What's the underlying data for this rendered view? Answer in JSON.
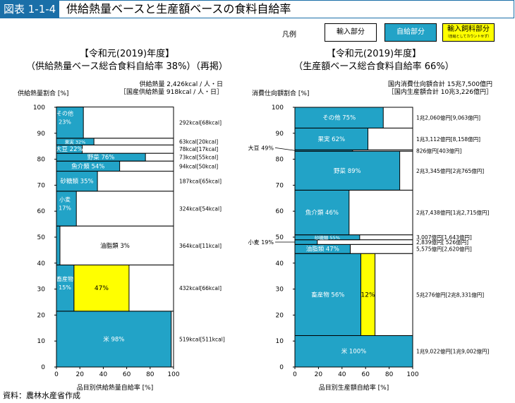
{
  "figure_label": "図表 1-1-4",
  "figure_title": "供給熱量ベースと生産額ベースの食料自給率",
  "legend": {
    "title": "凡例",
    "import": "輸入部分",
    "self": "自給部分",
    "feed": "輸入飼料部分",
    "feed_note": "（自給としてカウントせず）"
  },
  "source": "資料：農林水産省作成",
  "colors": {
    "self": "#22a3c7",
    "import": "#ffffff",
    "feed": "#ffff00",
    "header": "#1a6fa8"
  },
  "chart_data": [
    {
      "type": "bar",
      "variant": "marimekko",
      "title": "【令和元(2019)年度】",
      "subtitle": "（供給熱量ベース総合食料自給率 38%）（再掲）",
      "totals": [
        "供給熱量 2,426kcal / 人・日",
        "［国産供給熱量 918kcal / 人・日］"
      ],
      "ylabel": "供給熱量割合 [%]",
      "xlabel": "品目別供給熱量自給率 [%]",
      "xlim": [
        0,
        100
      ],
      "ylim": [
        0,
        100
      ],
      "xticks": [
        "0",
        "20",
        "40",
        "60",
        "80",
        "100"
      ],
      "yticks": [
        "0",
        "10",
        "20",
        "30",
        "40",
        "50",
        "60",
        "70",
        "80",
        "90",
        "100"
      ],
      "segments": [
        {
          "label": "米",
          "pct_label": "98%",
          "share": 21.5,
          "self_rate": 98,
          "feed_rate": 0,
          "right_label": "519kcal[511kcal]"
        },
        {
          "label": "畜産物",
          "pct_label": "15%",
          "share": 17.8,
          "self_rate": 15,
          "feed_rate": 47,
          "feed_label": "47%",
          "right_label": "432kcal[66kcal]"
        },
        {
          "label": "油脂類",
          "pct_label": "3%",
          "share": 15.0,
          "self_rate": 3,
          "feed_rate": 0,
          "right_label": "364kcal[11kcal]"
        },
        {
          "label": "小麦",
          "pct_label": "17%",
          "share": 13.4,
          "self_rate": 17,
          "feed_rate": 0,
          "right_label": "324kcal[54kcal]"
        },
        {
          "label": "砂糖類",
          "pct_label": "35%",
          "share": 7.7,
          "self_rate": 35,
          "feed_rate": 0,
          "right_label": "187kcal[65kcal]"
        },
        {
          "label": "魚介類",
          "pct_label": "54%",
          "share": 3.9,
          "self_rate": 54,
          "feed_rate": 0,
          "right_label": "94kcal[50kcal]"
        },
        {
          "label": "野菜",
          "pct_label": "76%",
          "share": 3.0,
          "self_rate": 76,
          "feed_rate": 0,
          "right_label": "73kcal[55kcal]"
        },
        {
          "label": "大豆",
          "pct_label": "22%",
          "share": 3.2,
          "self_rate": 22,
          "feed_rate": 0,
          "right_label": "78kcal[17kcal]"
        },
        {
          "label": "果実",
          "pct_label": "32%",
          "share": 2.6,
          "self_rate": 32,
          "feed_rate": 0,
          "right_label": "63kcal[20kcal]"
        },
        {
          "label": "その他",
          "pct_label": "23%",
          "share": 12.0,
          "self_rate": 23,
          "feed_rate": 0,
          "right_label": "292kcal[68kcal]"
        }
      ]
    },
    {
      "type": "bar",
      "variant": "marimekko",
      "title": "【令和元(2019)年度】",
      "subtitle": "（生産額ベース総合食料自給率 66%）",
      "totals": [
        "国内消費仕向額合計 15兆7,500億円",
        "［国内生産額合計 10兆3,226億円］"
      ],
      "ylabel": "消費仕向額割合 [%]",
      "xlabel": "品目別生産額自給率 [%]",
      "xlim": [
        0,
        100
      ],
      "ylim": [
        0,
        100
      ],
      "xticks": [
        "0",
        "20",
        "40",
        "60",
        "80",
        "100"
      ],
      "yticks": [
        "0",
        "10",
        "20",
        "30",
        "40",
        "50",
        "60",
        "70",
        "80",
        "90",
        "100"
      ],
      "segments": [
        {
          "label": "米",
          "pct_label": "100%",
          "share": 12.1,
          "self_rate": 100,
          "feed_rate": 0,
          "right_label": "1兆9,022億円[1兆9,002億円]"
        },
        {
          "label": "畜産物",
          "pct_label": "56%",
          "share": 31.6,
          "self_rate": 56,
          "feed_rate": 12,
          "feed_label": "12%",
          "right_label": "5兆276億円[2兆8,331億円]"
        },
        {
          "label": "油脂類",
          "pct_label": "47%",
          "share": 3.5,
          "self_rate": 47,
          "feed_rate": 0,
          "right_label": "5,575億円[2,620億円]"
        },
        {
          "label": "小麦",
          "pct_label": "19%",
          "share": 1.8,
          "self_rate": 19,
          "feed_rate": 0,
          "right_label": "2,839億円[ 526億円]",
          "callout": "小麦 19%"
        },
        {
          "label": "砂糖類",
          "pct_label": "55%",
          "share": 1.9,
          "self_rate": 55,
          "feed_rate": 0,
          "right_label": "3,007億円[1,643億円]"
        },
        {
          "label": "魚介類",
          "pct_label": "46%",
          "share": 17.2,
          "self_rate": 46,
          "feed_rate": 0,
          "right_label": "2兆7,438億円[1兆2,715億円]"
        },
        {
          "label": "野菜",
          "pct_label": "89%",
          "share": 15.0,
          "self_rate": 89,
          "feed_rate": 0,
          "right_label": "2兆3,345億円[2兆765億円]"
        },
        {
          "label": "大豆",
          "pct_label": "49%",
          "share": 0.5,
          "self_rate": 49,
          "feed_rate": 0,
          "right_label": "826億円[403億円]",
          "callout": "大豆 49%"
        },
        {
          "label": "果実",
          "pct_label": "62%",
          "share": 8.4,
          "self_rate": 62,
          "feed_rate": 0,
          "right_label": "1兆3,112億円[8,158億円]"
        },
        {
          "label": "その他",
          "pct_label": "75%",
          "share": 8.0,
          "self_rate": 75,
          "feed_rate": 0,
          "right_label": "1兆2,060億円[9,063億円]"
        }
      ]
    }
  ]
}
